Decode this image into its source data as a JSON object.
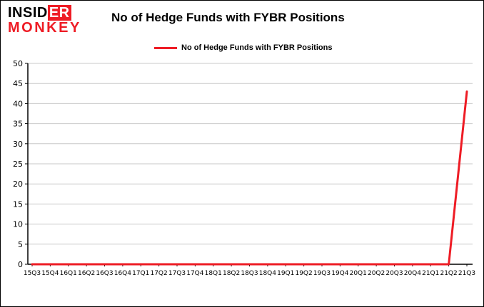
{
  "logo": {
    "word1a": "INSID",
    "word1b": "ER",
    "word2": "MONKEY"
  },
  "header": {
    "title": "No of Hedge Funds with FYBR Positions"
  },
  "legend": {
    "label": "No of Hedge Funds with FYBR Positions"
  },
  "colors": {
    "accent_red": "#ee1c25",
    "gridline": "#c9c9c9",
    "axis": "#000000"
  },
  "chart_data": {
    "type": "line",
    "title": "No of Hedge Funds with FYBR Positions",
    "categories": [
      "15Q3",
      "15Q4",
      "16Q1",
      "16Q2",
      "16Q3",
      "16Q4",
      "17Q1",
      "17Q2",
      "17Q3",
      "17Q4",
      "18Q1",
      "18Q2",
      "18Q3",
      "18Q4",
      "19Q1",
      "19Q2",
      "19Q3",
      "19Q4",
      "20Q1",
      "20Q2",
      "20Q3",
      "20Q4",
      "21Q1",
      "21Q2",
      "21Q3"
    ],
    "series": [
      {
        "name": "No of Hedge Funds with FYBR Positions",
        "color": "#ee1c25",
        "values": [
          0,
          0,
          0,
          0,
          0,
          0,
          0,
          0,
          0,
          0,
          0,
          0,
          0,
          0,
          0,
          0,
          0,
          0,
          0,
          0,
          0,
          0,
          0,
          0,
          43
        ]
      }
    ],
    "xlabel": "",
    "ylabel": "",
    "ylim": [
      0,
      50
    ],
    "ytick_step": 5,
    "grid": true,
    "legend_position": "top"
  }
}
